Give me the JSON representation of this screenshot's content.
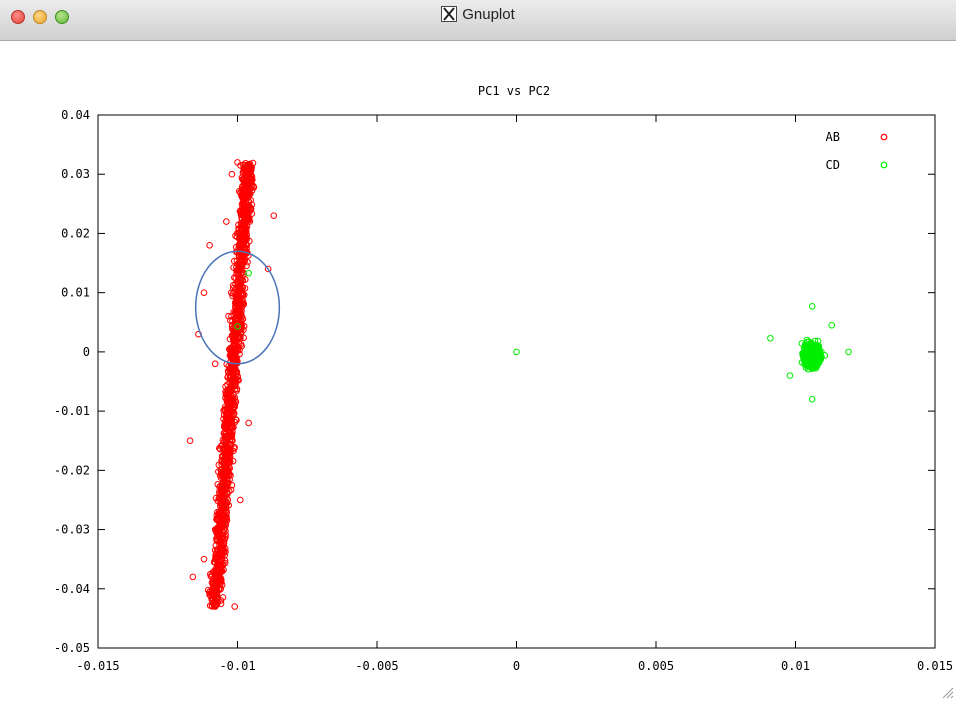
{
  "window": {
    "title": "Gnuplot"
  },
  "chart_data": {
    "type": "scatter",
    "title": "PC1 vs PC2",
    "xlabel": "",
    "ylabel": "",
    "xlim": [
      -0.015,
      0.015
    ],
    "ylim": [
      -0.05,
      0.04
    ],
    "xticks": [
      "-0.015",
      "-0.01",
      "-0.005",
      "0",
      "0.005",
      "0.01",
      "0.015"
    ],
    "yticks": [
      "0.04",
      "0.03",
      "0.02",
      "0.01",
      "0",
      "-0.01",
      "-0.02",
      "-0.03",
      "-0.04",
      "-0.05"
    ],
    "legend_position": "top-right",
    "grid": false,
    "series": [
      {
        "name": "AB",
        "color": "#ff0000",
        "marker": "open-circle",
        "description_clusters": [
          {
            "x_center": -0.0102,
            "y_range": [
              -0.043,
              0.032
            ],
            "x_spread": 0.0006
          }
        ],
        "points": [
          [
            -0.01,
            0.032
          ],
          [
            -0.0102,
            0.03
          ],
          [
            -0.0095,
            0.028
          ],
          [
            -0.0098,
            0.025
          ],
          [
            -0.0104,
            0.022
          ],
          [
            -0.0087,
            0.023
          ],
          [
            -0.011,
            0.018
          ],
          [
            -0.0089,
            0.014
          ],
          [
            -0.0112,
            0.01
          ],
          [
            -0.0098,
            0.008
          ],
          [
            -0.0114,
            0.003
          ],
          [
            -0.0108,
            -0.002
          ],
          [
            -0.0103,
            -0.008
          ],
          [
            -0.0096,
            -0.012
          ],
          [
            -0.0117,
            -0.015
          ],
          [
            -0.0106,
            -0.02
          ],
          [
            -0.0099,
            -0.025
          ],
          [
            -0.0108,
            -0.03
          ],
          [
            -0.0112,
            -0.035
          ],
          [
            -0.0116,
            -0.038
          ],
          [
            -0.0106,
            -0.04
          ],
          [
            -0.011,
            -0.041
          ],
          [
            -0.0101,
            -0.043
          ]
        ]
      },
      {
        "name": "CD",
        "color": "#00ee00",
        "marker": "open-circle",
        "description_clusters": [
          {
            "x_center": 0.0106,
            "y_center": -0.0005,
            "x_spread": 0.001,
            "y_spread": 0.007
          }
        ],
        "points": [
          [
            -0.0096,
            0.0133
          ],
          [
            -0.01,
            0.0043
          ],
          [
            0.0,
            0.0
          ],
          [
            0.0091,
            0.0023
          ],
          [
            0.0119,
            0.0
          ],
          [
            0.0106,
            0.0077
          ],
          [
            0.0106,
            -0.008
          ],
          [
            0.0098,
            -0.004
          ],
          [
            0.0113,
            0.0045
          ]
        ]
      }
    ],
    "annotations": [
      {
        "type": "ellipse",
        "stroke": "#4a74b8",
        "cx": -0.01,
        "cy": 0.0075,
        "rx": 0.0015,
        "ry": 0.0095
      }
    ]
  }
}
